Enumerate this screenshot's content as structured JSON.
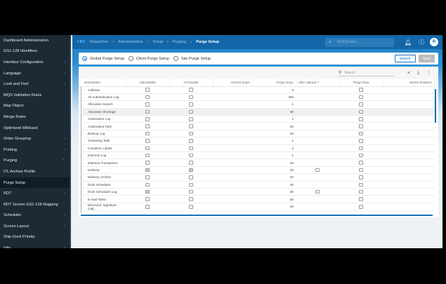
{
  "sidebar": {
    "items": [
      {
        "label": "Dashboard Administration",
        "chevron": ""
      },
      {
        "label": "GS1-128 Identifiers",
        "chevron": ""
      },
      {
        "label": "Interface Configuration",
        "chevron": "›"
      },
      {
        "label": "Language",
        "chevron": "›"
      },
      {
        "label": "Look and Feel",
        "chevron": "›"
      },
      {
        "label": "MQS Validation Rules",
        "chevron": ""
      },
      {
        "label": "Map Object",
        "chevron": ""
      },
      {
        "label": "Merge Rules",
        "chevron": ""
      },
      {
        "label": "Optimized Wildcard",
        "chevron": ""
      },
      {
        "label": "Order Grouping",
        "chevron": "›"
      },
      {
        "label": "Printing",
        "chevron": "›"
      },
      {
        "label": "Purging",
        "chevron": "⌃"
      },
      {
        "label": "ITL Archive Profile",
        "chevron": ""
      },
      {
        "label": "Purge Setup",
        "chevron": "",
        "active": true
      },
      {
        "label": "RDT",
        "chevron": "›"
      },
      {
        "label": "RDT Screen GS1-128 Mapping",
        "chevron": ""
      },
      {
        "label": "Scheduler",
        "chevron": "›"
      },
      {
        "label": "Screen Layout",
        "chevron": "›"
      },
      {
        "label": "Ship Dock Priority",
        "chevron": ""
      },
      {
        "label": "Site",
        "chevron": "›"
      }
    ]
  },
  "header": {
    "logo": "✧BY",
    "breadcrumbs": [
      "Dispatcher",
      "Administration",
      "Setup",
      "Purging",
      "Purge Setup"
    ],
    "find_placeholder": "Find Screen...",
    "avatar": "R"
  },
  "options": {
    "radios": [
      {
        "label": "Global Purge Setup",
        "selected": true
      },
      {
        "label": "Client Purge Setup",
        "selected": false
      },
      {
        "label": "Site Purge Setup",
        "selected": false
      }
    ],
    "search_label": "Search",
    "save_label": "Save"
  },
  "grid": {
    "search_placeholder": "Search",
    "columns": [
      "Description",
      "Uploadable",
      "Archivable",
      "Archive Days",
      "Purge Days",
      "After Upload ?",
      "Purge Now",
      "Server Instance"
    ],
    "rows": [
      {
        "description": "Address",
        "uploadable": false,
        "archivable": false,
        "purge_days": "0",
        "after_upload": null
      },
      {
        "description": "All Authentication Log",
        "uploadable": false,
        "archivable": false,
        "purge_days": "365",
        "after_upload": null
      },
      {
        "description": "Allocation Search",
        "uploadable": false,
        "archivable": false,
        "purge_days": "1",
        "after_upload": null
      },
      {
        "description": "Allocation Shortage",
        "uploadable": false,
        "archivable": false,
        "purge_days": "30",
        "after_upload": null,
        "highlighted": true
      },
      {
        "description": "Automation Log",
        "uploadable": false,
        "archivable": false,
        "purge_days": "1",
        "after_upload": null
      },
      {
        "description": "Automation Task",
        "uploadable": false,
        "archivable": false,
        "purge_days": "30",
        "after_upload": null
      },
      {
        "description": "Backup Log",
        "uploadable": false,
        "archivable": false,
        "purge_days": "30",
        "after_upload": null
      },
      {
        "description": "Clustering Task",
        "uploadable": false,
        "archivable": false,
        "purge_days": "1",
        "after_upload": null
      },
      {
        "description": "Container Labels",
        "uploadable": false,
        "archivable": false,
        "purge_days": "2",
        "after_upload": null
      },
      {
        "description": "Daemon Log",
        "uploadable": false,
        "archivable": false,
        "purge_days": "1",
        "after_upload": null
      },
      {
        "description": "Daemon Transaction",
        "uploadable": false,
        "archivable": false,
        "purge_days": "30",
        "after_upload": null
      },
      {
        "description": "Delivery",
        "uploadable": true,
        "archivable": true,
        "purge_days": "30",
        "after_upload": false
      },
      {
        "description": "Delivery Archive",
        "uploadable": false,
        "archivable": false,
        "purge_days": "30",
        "after_upload": null
      },
      {
        "description": "Dock Scheduler",
        "uploadable": false,
        "archivable": false,
        "purge_days": "30",
        "after_upload": null
      },
      {
        "description": "Dock Scheduler Log",
        "uploadable": true,
        "archivable": false,
        "purge_days": "30",
        "after_upload": false
      },
      {
        "description": "E-mail Tasks",
        "uploadable": false,
        "archivable": false,
        "purge_days": "30",
        "after_upload": null
      },
      {
        "description": "Electronic Signature Cap...",
        "uploadable": false,
        "archivable": false,
        "purge_days": "30",
        "after_upload": null
      }
    ]
  }
}
